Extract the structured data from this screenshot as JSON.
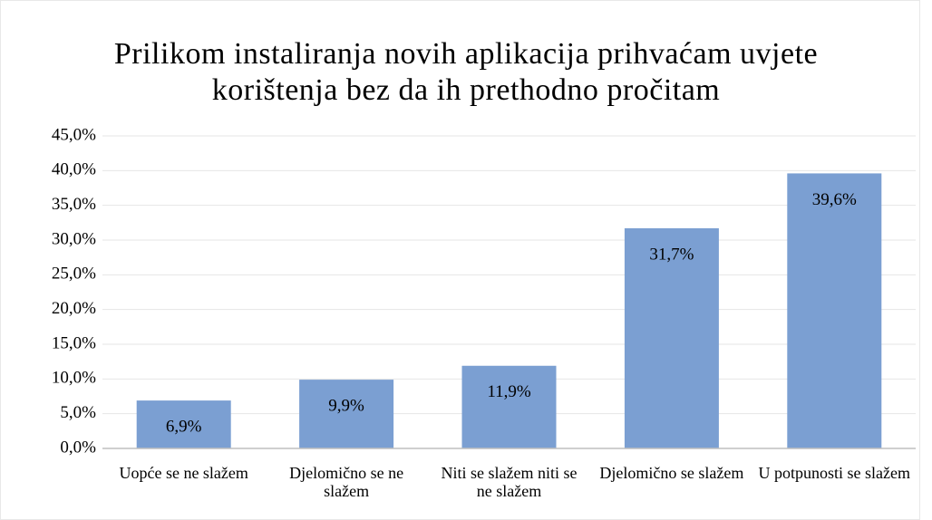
{
  "chart_data": {
    "type": "bar",
    "title": "Prilikom instaliranja novih aplikacija prihvaćam uvjete korištenja bez da ih prethodno pročitam",
    "categories": [
      "Uopće se ne slažem",
      "Djelomično se ne slažem",
      "Niti se slažem niti se ne slažem",
      "Djelomično se slažem",
      "U potpunosti se slažem"
    ],
    "values": [
      6.9,
      9.9,
      11.9,
      31.7,
      39.6
    ],
    "value_labels": [
      "6,9%",
      "9,9%",
      "11,9%",
      "31,7%",
      "39,6%"
    ],
    "color": "#7b9fd2",
    "ylim": [
      0,
      45
    ],
    "yticks": [
      {
        "value": 0,
        "label": "0,0%"
      },
      {
        "value": 5,
        "label": "5,0%"
      },
      {
        "value": 10,
        "label": "10,0%"
      },
      {
        "value": 15,
        "label": "15,0%"
      },
      {
        "value": 20,
        "label": "20,0%"
      },
      {
        "value": 25,
        "label": "25,0%"
      },
      {
        "value": 30,
        "label": "30,0%"
      },
      {
        "value": 35,
        "label": "35,0%"
      },
      {
        "value": 40,
        "label": "40,0%"
      },
      {
        "value": 45,
        "label": "45,0%"
      }
    ],
    "grid": true
  }
}
